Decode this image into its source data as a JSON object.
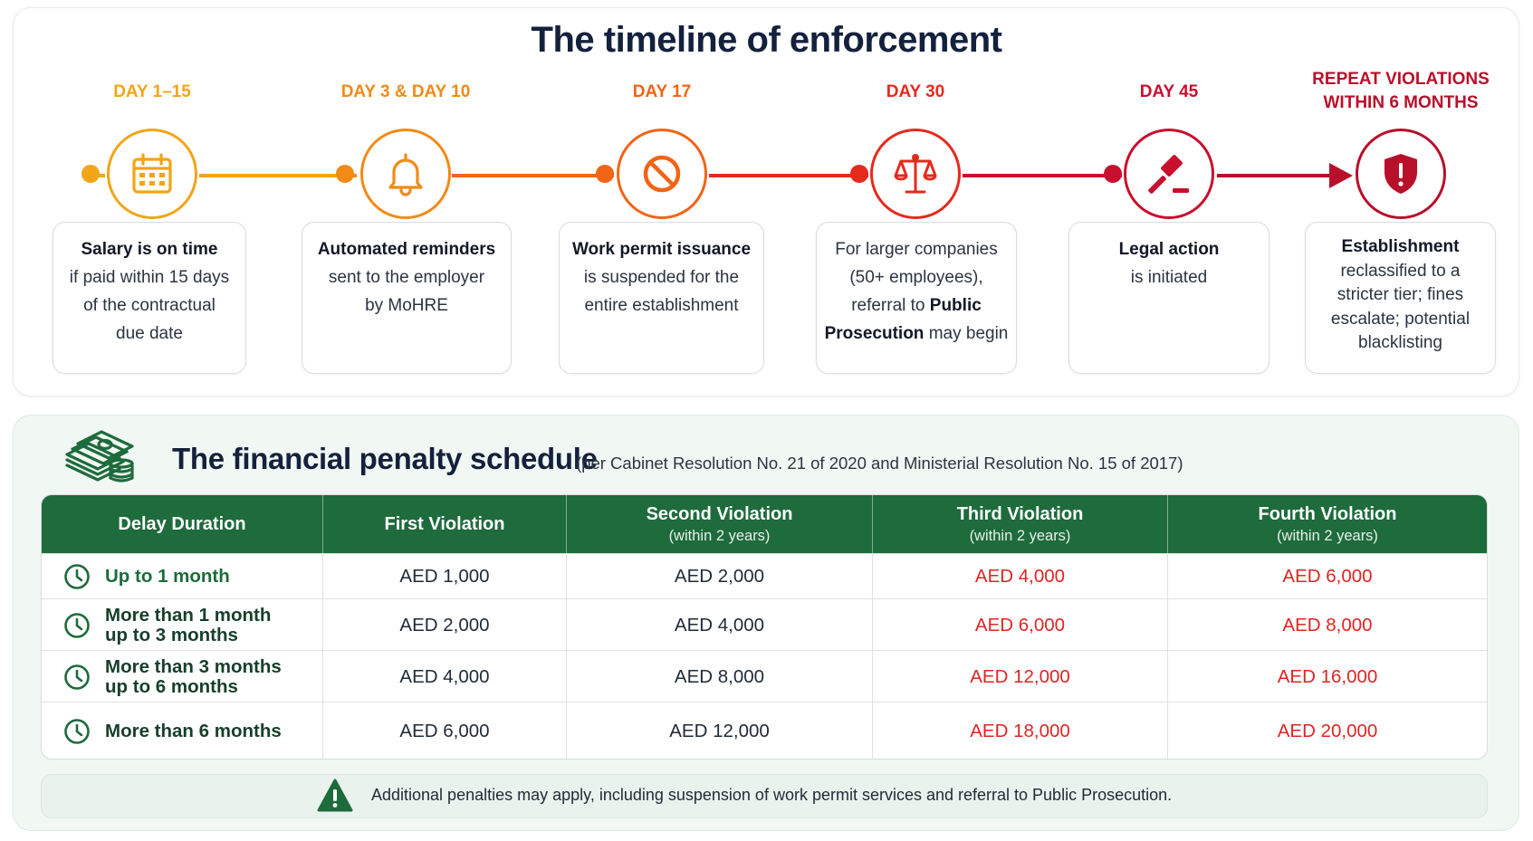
{
  "timeline": {
    "title": "The timeline of enforcement",
    "steps": [
      {
        "day": "DAY 1–15",
        "color": "#f2a516",
        "icon": "calendar-icon",
        "text_lines": [
          "<b>Salary is on time</b>",
          "if paid within 15 days",
          "of the contractual",
          "due date"
        ]
      },
      {
        "day": "DAY 3 & DAY 10",
        "color": "#f28a16",
        "icon": "bell-icon",
        "text_lines": [
          "<b>Automated reminders</b>",
          "sent to the employer",
          "by MoHRE"
        ]
      },
      {
        "day": "DAY 17",
        "color": "#f26416",
        "icon": "prohibited-icon",
        "text_lines": [
          "<b>Work permit issuance</b>",
          "is suspended for the",
          "entire establishment"
        ]
      },
      {
        "day": "DAY 30",
        "color": "#e62a1e",
        "icon": "scales-icon",
        "text_lines": [
          "For larger companies",
          "(50+ employees),",
          "referral to <b>Public</b>",
          "<b>Prosecution</b> may begin"
        ]
      },
      {
        "day": "DAY 45",
        "color": "#c8102e",
        "icon": "gavel-icon",
        "text_lines": [
          "<b>Legal action</b>",
          "is initiated"
        ]
      },
      {
        "day": "REPEAT VIOLATIONS\nWITHIN 6 MONTHS",
        "color": "#b8102a",
        "icon": "shield-alert-icon",
        "text_lines": [
          "<b>Establishment</b>",
          "reclassified to a",
          "stricter tier; fines",
          "escalate; potential",
          "blacklisting"
        ]
      }
    ]
  },
  "penalties": {
    "icon": "money-stack-icon",
    "title": "The financial penalty schedule",
    "subtitle": "(per Cabinet Resolution No. 21 of 2020 and Ministerial Resolution No. 15 of 2017)",
    "header_color": "#1e6b3c",
    "highlight_color": "#e02424",
    "columns": [
      {
        "label": "Delay Duration",
        "sub": ""
      },
      {
        "label": "First Violation",
        "sub": ""
      },
      {
        "label": "Second Violation",
        "sub": "(within 2 years)"
      },
      {
        "label": "Third Violation",
        "sub": "(within 2 years)"
      },
      {
        "label": "Fourth Violation",
        "sub": "(within 2 years)"
      }
    ],
    "rows": [
      {
        "duration": [
          "Up to 1 month"
        ],
        "values": [
          "AED 1,000",
          "AED 2,000",
          "AED 4,000",
          "AED 6,000"
        ]
      },
      {
        "duration": [
          "More than 1 month",
          "up to 3 months"
        ],
        "values": [
          "AED 2,000",
          "AED 4,000",
          "AED 6,000",
          "AED 8,000"
        ]
      },
      {
        "duration": [
          "More than 3 months",
          "up to 6 months"
        ],
        "values": [
          "AED 4,000",
          "AED 8,000",
          "AED 12,000",
          "AED 16,000"
        ]
      },
      {
        "duration": [
          "More than 6 months"
        ],
        "values": [
          "AED 6,000",
          "AED 12,000",
          "AED 18,000",
          "AED 20,000"
        ]
      }
    ],
    "note": "Additional penalties may apply, including suspension of work permit services and referral to Public Prosecution.",
    "note_icon": "warning-icon"
  }
}
